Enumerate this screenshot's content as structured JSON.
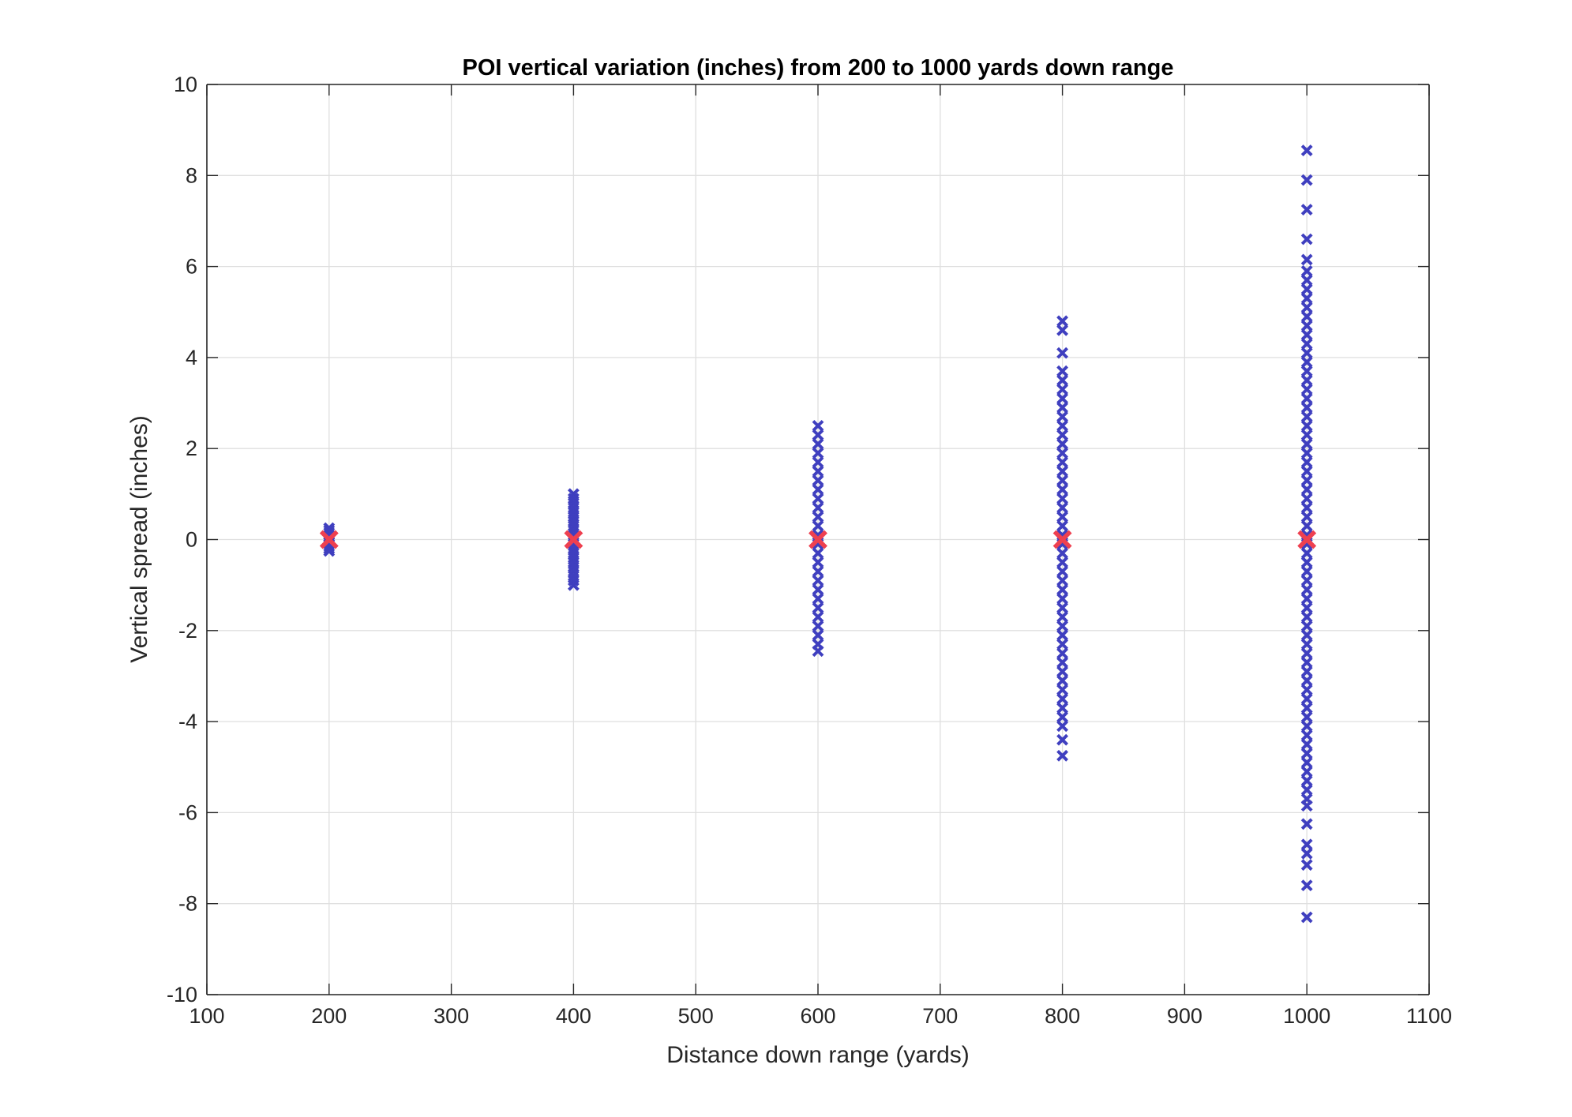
{
  "chart_data": {
    "type": "scatter",
    "title": "POI vertical variation (inches) from 200 to 1000 yards down range",
    "xlabel": "Distance down range (yards)",
    "ylabel": "Vertical spread (inches)",
    "xlim": [
      100,
      1100
    ],
    "ylim": [
      -10,
      10
    ],
    "xticks": [
      100,
      200,
      300,
      400,
      500,
      600,
      700,
      800,
      900,
      1000,
      1100
    ],
    "yticks": [
      -10,
      -8,
      -6,
      -4,
      -2,
      0,
      2,
      4,
      6,
      8,
      10
    ],
    "grid": true,
    "colors": {
      "shots": "#3f3fbf",
      "mean": "#ee4050",
      "grid": "#dfdfdf",
      "axes": "#262626"
    },
    "series": [
      {
        "marker": "x",
        "groups": [
          {
            "x": 200,
            "y": [
              0.25,
              0.2,
              0.15,
              0.1,
              0.05,
              0.0,
              -0.05,
              -0.1,
              -0.15,
              -0.2,
              -0.25
            ]
          },
          {
            "x": 400,
            "y": [
              1.0,
              0.9,
              0.8,
              0.7,
              0.6,
              0.5,
              0.4,
              0.3,
              0.2,
              0.1,
              0.0,
              -0.1,
              -0.2,
              -0.3,
              -0.4,
              -0.5,
              -0.6,
              -0.7,
              -0.8,
              -0.9,
              -1.0
            ]
          },
          {
            "x": 600,
            "y": [
              2.5,
              2.3,
              2.1,
              1.9,
              1.7,
              1.5,
              1.3,
              1.1,
              0.9,
              0.7,
              0.5,
              0.3,
              0.1,
              -0.1,
              -0.3,
              -0.5,
              -0.7,
              -0.9,
              -1.1,
              -1.3,
              -1.5,
              -1.7,
              -1.9,
              -2.1,
              -2.3,
              -2.45
            ]
          },
          {
            "x": 800,
            "y": [
              4.8,
              4.6,
              4.1,
              3.7,
              3.5,
              3.3,
              3.1,
              2.9,
              2.7,
              2.5,
              2.3,
              2.1,
              1.9,
              1.7,
              1.5,
              1.3,
              1.1,
              0.9,
              0.7,
              0.5,
              0.3,
              0.1,
              -0.1,
              -0.3,
              -0.5,
              -0.7,
              -0.9,
              -1.1,
              -1.3,
              -1.5,
              -1.7,
              -1.9,
              -2.1,
              -2.3,
              -2.5,
              -2.7,
              -2.9,
              -3.1,
              -3.3,
              -3.5,
              -3.7,
              -3.9,
              -4.1,
              -4.4,
              -4.75
            ]
          },
          {
            "x": 1000,
            "y": [
              8.55,
              7.9,
              7.25,
              6.6,
              6.15,
              5.9,
              5.7,
              5.5,
              5.3,
              5.1,
              4.9,
              4.7,
              4.5,
              4.3,
              4.1,
              3.9,
              3.7,
              3.5,
              3.3,
              3.1,
              2.9,
              2.7,
              2.5,
              2.3,
              2.1,
              1.9,
              1.7,
              1.5,
              1.3,
              1.1,
              0.9,
              0.7,
              0.5,
              0.3,
              0.1,
              -0.1,
              -0.3,
              -0.5,
              -0.7,
              -0.9,
              -1.1,
              -1.3,
              -1.5,
              -1.7,
              -1.9,
              -2.1,
              -2.3,
              -2.5,
              -2.7,
              -2.9,
              -3.1,
              -3.3,
              -3.5,
              -3.7,
              -3.9,
              -4.1,
              -4.3,
              -4.5,
              -4.7,
              -4.9,
              -5.1,
              -5.3,
              -5.5,
              -5.7,
              -5.85,
              -6.25,
              -6.7,
              -6.9,
              -7.15,
              -7.6,
              -8.3
            ]
          }
        ]
      },
      {
        "marker": "x-large",
        "x": [
          200,
          400,
          600,
          800,
          1000
        ],
        "y": [
          0,
          0,
          0,
          0,
          0
        ]
      }
    ]
  }
}
